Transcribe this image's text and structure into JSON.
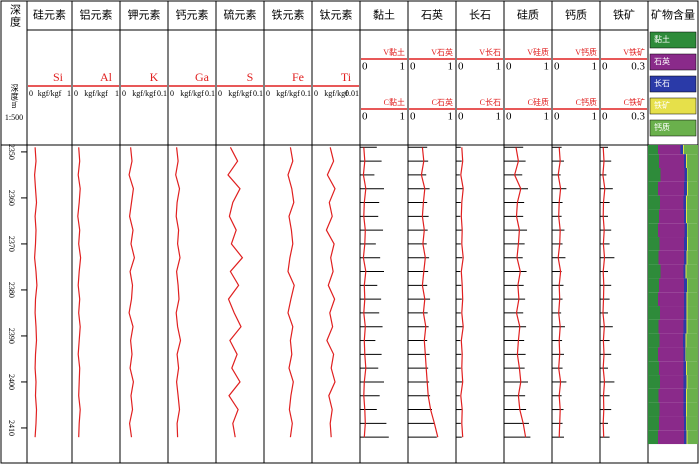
{
  "chart_data": {
    "type": "well_log",
    "depth_title": "深度",
    "depth_label": "深度/m",
    "scale": "1:500",
    "ylim": [
      2348.5,
      2417.4
    ],
    "yticks": [
      2350,
      2360,
      2370,
      2380,
      2390,
      2400,
      2410
    ],
    "depth": [
      2349,
      2352,
      2355,
      2358,
      2361,
      2364,
      2367,
      2370,
      2373,
      2376,
      2379,
      2382,
      2385,
      2388,
      2391,
      2394,
      2397,
      2400,
      2403,
      2406,
      2409,
      2412
    ],
    "element_tracks": [
      {
        "title": "硅元素",
        "symbol": "Si",
        "unit": "kgf/kgf",
        "xlim": [
          0,
          1
        ],
        "color": "#e02020",
        "values": [
          0.18,
          0.2,
          0.17,
          0.19,
          0.21,
          0.18,
          0.2,
          0.19,
          0.17,
          0.2,
          0.22,
          0.19,
          0.18,
          0.2,
          0.21,
          0.19,
          0.18,
          0.2,
          0.19,
          0.21,
          0.2,
          0.18
        ]
      },
      {
        "title": "铝元素",
        "symbol": "Al",
        "unit": "kgf/kgf",
        "xlim": [
          0,
          1
        ],
        "color": "#e02020",
        "values": [
          0.14,
          0.16,
          0.13,
          0.17,
          0.15,
          0.12,
          0.16,
          0.14,
          0.18,
          0.15,
          0.13,
          0.16,
          0.14,
          0.17,
          0.15,
          0.13,
          0.16,
          0.15,
          0.14,
          0.17,
          0.15,
          0.14
        ]
      },
      {
        "title": "钾元素",
        "symbol": "K",
        "unit": "kgf/kgf",
        "xlim": [
          0,
          0.1
        ],
        "color": "#e02020",
        "values": [
          0.022,
          0.025,
          0.019,
          0.028,
          0.024,
          0.02,
          0.027,
          0.023,
          0.03,
          0.021,
          0.026,
          0.024,
          0.019,
          0.027,
          0.022,
          0.025,
          0.021,
          0.028,
          0.023,
          0.026,
          0.02,
          0.024
        ]
      },
      {
        "title": "钙元素",
        "symbol": "Ga",
        "unit": "kgf/kgf",
        "xlim": [
          0,
          0.1
        ],
        "color": "#e02020",
        "values": [
          0.018,
          0.021,
          0.016,
          0.024,
          0.019,
          0.017,
          0.022,
          0.02,
          0.025,
          0.018,
          0.021,
          0.023,
          0.017,
          0.02,
          0.026,
          0.019,
          0.022,
          0.018,
          0.021,
          0.024,
          0.019,
          0.02
        ]
      },
      {
        "title": "硫元素",
        "symbol": "S",
        "unit": "kgf/kgf",
        "xlim": [
          0,
          0.1
        ],
        "color": "#e02020",
        "values": [
          0.03,
          0.045,
          0.025,
          0.05,
          0.035,
          0.028,
          0.042,
          0.032,
          0.055,
          0.03,
          0.047,
          0.026,
          0.038,
          0.052,
          0.029,
          0.044,
          0.033,
          0.05,
          0.027,
          0.046,
          0.035,
          0.04
        ]
      },
      {
        "title": "铁元素",
        "symbol": "Fe",
        "unit": "kgf/kgf",
        "xlim": [
          0,
          0.1
        ],
        "color": "#e02020",
        "values": [
          0.055,
          0.06,
          0.05,
          0.058,
          0.062,
          0.052,
          0.057,
          0.06,
          0.054,
          0.05,
          0.063,
          0.056,
          0.05,
          0.06,
          0.055,
          0.058,
          0.052,
          0.061,
          0.056,
          0.053,
          0.059,
          0.055
        ]
      },
      {
        "title": "钛元素",
        "symbol": "Ti",
        "unit": "kgf/kgf",
        "xlim": [
          0,
          0.01
        ],
        "color": "#e02020",
        "values": [
          0.0038,
          0.0045,
          0.0032,
          0.0048,
          0.0036,
          0.0042,
          0.003,
          0.0046,
          0.0039,
          0.0044,
          0.0034,
          0.0047,
          0.0037,
          0.0043,
          0.0031,
          0.0045,
          0.004,
          0.0048,
          0.0035,
          0.0042,
          0.0038,
          0.004
        ]
      }
    ],
    "mineral_tracks": [
      {
        "title": "黏土",
        "v_name": "V黏土",
        "c_name": "C黏土",
        "xlim": [
          0,
          1
        ],
        "v_color": "#e02020",
        "c_color": "#000000",
        "v_values": [
          0.08,
          0.1,
          0.07,
          0.12,
          0.09,
          0.08,
          0.11,
          0.1,
          0.07,
          0.12,
          0.09,
          0.1,
          0.08,
          0.11,
          0.09,
          0.1,
          0.12,
          0.09,
          0.08,
          0.1,
          0.11,
          0.09
        ],
        "c_values": [
          0.35,
          0.45,
          0.3,
          0.5,
          0.4,
          0.38,
          0.48,
          0.33,
          0.42,
          0.5,
          0.36,
          0.44,
          0.4,
          0.47,
          0.32,
          0.45,
          0.38,
          0.5,
          0.41,
          0.35,
          0.55,
          0.6
        ]
      },
      {
        "title": "石英",
        "v_name": "V石英",
        "c_name": "C石英",
        "xlim": [
          0,
          1
        ],
        "v_color": "#e02020",
        "c_color": "#000000",
        "v_values": [
          0.3,
          0.33,
          0.28,
          0.35,
          0.32,
          0.3,
          0.34,
          0.31,
          0.36,
          0.33,
          0.3,
          0.35,
          0.32,
          0.37,
          0.34,
          0.36,
          0.38,
          0.4,
          0.42,
          0.47,
          0.55,
          0.62
        ],
        "c_values": [
          0.4,
          0.42,
          0.38,
          0.45,
          0.4,
          0.43,
          0.41,
          0.39,
          0.44,
          0.42,
          0.4,
          0.46,
          0.41,
          0.43,
          0.4,
          0.45,
          0.42,
          0.44,
          0.46,
          0.5,
          0.55,
          0.6
        ]
      },
      {
        "title": "长石",
        "v_name": "V长石",
        "c_name": "C长石",
        "xlim": [
          0,
          1
        ],
        "v_color": "#e02020",
        "c_color": "#000000",
        "v_values": [
          0.12,
          0.14,
          0.1,
          0.15,
          0.12,
          0.11,
          0.13,
          0.12,
          0.15,
          0.11,
          0.13,
          0.14,
          0.12,
          0.15,
          0.11,
          0.13,
          0.12,
          0.14,
          0.1,
          0.13,
          0.12,
          0.14
        ],
        "c_values": [
          0.1,
          0.12,
          0.08,
          0.14,
          0.1,
          0.09,
          0.12,
          0.1,
          0.13,
          0.09,
          0.11,
          0.12,
          0.1,
          0.14,
          0.09,
          0.11,
          0.1,
          0.13,
          0.08,
          0.12,
          0.1,
          0.12
        ]
      },
      {
        "title": "硅质",
        "v_name": "V硅质",
        "c_name": "C硅质",
        "xlim": [
          0,
          1
        ],
        "v_color": "#e02020",
        "c_color": "#000000",
        "v_values": [
          0.25,
          0.3,
          0.22,
          0.35,
          0.28,
          0.26,
          0.32,
          0.3,
          0.27,
          0.34,
          0.29,
          0.31,
          0.26,
          0.33,
          0.3,
          0.28,
          0.32,
          0.35,
          0.3,
          0.33,
          0.4,
          0.45
        ],
        "c_values": [
          0.4,
          0.45,
          0.38,
          0.5,
          0.42,
          0.4,
          0.48,
          0.43,
          0.39,
          0.47,
          0.41,
          0.44,
          0.4,
          0.46,
          0.42,
          0.45,
          0.43,
          0.5,
          0.44,
          0.46,
          0.52,
          0.55
        ]
      },
      {
        "title": "钙质",
        "v_name": "V钙质",
        "c_name": "C钙质",
        "xlim": [
          0,
          1
        ],
        "v_color": "#e02020",
        "c_color": "#000000",
        "v_values": [
          0.15,
          0.17,
          0.13,
          0.18,
          0.15,
          0.14,
          0.17,
          0.16,
          0.13,
          0.18,
          0.15,
          0.16,
          0.14,
          0.17,
          0.15,
          0.16,
          0.14,
          0.18,
          0.15,
          0.17,
          0.16,
          0.15
        ],
        "c_values": [
          0.2,
          0.25,
          0.18,
          0.3,
          0.22,
          0.2,
          0.26,
          0.22,
          0.28,
          0.2,
          0.24,
          0.22,
          0.19,
          0.27,
          0.21,
          0.25,
          0.22,
          0.3,
          0.2,
          0.24,
          0.22,
          0.25
        ]
      },
      {
        "title": "铁矿",
        "v_name": "V铁矿",
        "c_name": "C铁矿",
        "xlim": [
          0,
          0.3
        ],
        "v_color": "#e02020",
        "c_color": "#000000",
        "v_values": [
          0.02,
          0.025,
          0.018,
          0.03,
          0.022,
          0.02,
          0.026,
          0.021,
          0.028,
          0.02,
          0.024,
          0.022,
          0.019,
          0.027,
          0.021,
          0.025,
          0.02,
          0.028,
          0.022,
          0.024,
          0.02,
          0.023
        ],
        "c_values": [
          0.05,
          0.07,
          0.04,
          0.08,
          0.06,
          0.05,
          0.07,
          0.06,
          0.09,
          0.05,
          0.07,
          0.06,
          0.05,
          0.08,
          0.06,
          0.07,
          0.05,
          0.09,
          0.06,
          0.07,
          0.05,
          0.06
        ]
      }
    ],
    "composition": {
      "title": "矿物含量",
      "series": [
        {
          "name": "黏土",
          "color": "#2e8b3a",
          "values": [
            0.2,
            0.22,
            0.25,
            0.2,
            0.24,
            0.22,
            0.2,
            0.23,
            0.21,
            0.25,
            0.22,
            0.2,
            0.24,
            0.21,
            0.23,
            0.2,
            0.22,
            0.24,
            0.21,
            0.23,
            0.22,
            0.2
          ]
        },
        {
          "name": "石英",
          "color": "#8a2a8a",
          "values": [
            0.45,
            0.5,
            0.48,
            0.52,
            0.47,
            0.5,
            0.53,
            0.49,
            0.51,
            0.46,
            0.5,
            0.52,
            0.48,
            0.5,
            0.47,
            0.51,
            0.49,
            0.47,
            0.5,
            0.48,
            0.5,
            0.52
          ]
        },
        {
          "name": "长石",
          "color": "#2a3aa8",
          "values": [
            0.05,
            0.04,
            0.05,
            0.06,
            0.05,
            0.04,
            0.05,
            0.06,
            0.05,
            0.04,
            0.06,
            0.05,
            0.05,
            0.06,
            0.05,
            0.04,
            0.05,
            0.06,
            0.05,
            0.05,
            0.04,
            0.05
          ]
        },
        {
          "name": "铁矿",
          "color": "#e6e04a",
          "values": [
            0.02,
            0.02,
            0.01,
            0.02,
            0.02,
            0.02,
            0.01,
            0.02,
            0.02,
            0.02,
            0.01,
            0.02,
            0.02,
            0.02,
            0.02,
            0.01,
            0.02,
            0.02,
            0.02,
            0.02,
            0.01,
            0.02
          ]
        },
        {
          "name": "钙质",
          "color": "#6ab04c",
          "values": [
            0.28,
            0.22,
            0.21,
            0.2,
            0.22,
            0.22,
            0.21,
            0.2,
            0.21,
            0.23,
            0.21,
            0.21,
            0.21,
            0.21,
            0.23,
            0.24,
            0.22,
            0.21,
            0.22,
            0.22,
            0.23,
            0.21
          ]
        }
      ]
    }
  }
}
